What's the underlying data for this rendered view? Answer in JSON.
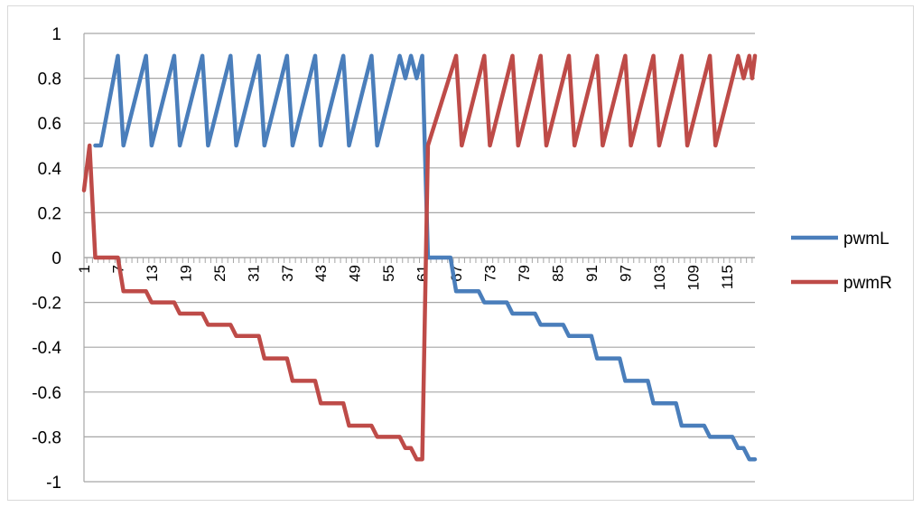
{
  "chart_data": {
    "type": "line",
    "title": "",
    "xlabel": "",
    "ylabel": "",
    "ylim": [
      -1,
      1
    ],
    "yticks": [
      -1,
      -0.8,
      -0.6,
      -0.4,
      -0.2,
      0,
      0.2,
      0.4,
      0.6,
      0.8,
      1
    ],
    "ytick_labels": [
      "-1",
      "-0.8",
      "-0.6",
      "-0.4",
      "-0.2",
      "0",
      "0.2",
      "0.4",
      "0.6",
      "0.8",
      "1"
    ],
    "x_range": [
      1,
      120
    ],
    "xtick_labels": [
      "1",
      "7",
      "13",
      "19",
      "25",
      "31",
      "37",
      "43",
      "49",
      "55",
      "61",
      "67",
      "73",
      "79",
      "85",
      "91",
      "97",
      "103",
      "109",
      "115"
    ],
    "grid": "horizontal",
    "legend_position": "right",
    "series": [
      {
        "name": "pwmL",
        "color": "#4a7ebb",
        "points": [
          [
            3,
            0.5
          ],
          [
            4,
            0.5
          ],
          [
            7,
            0.9
          ],
          [
            8,
            0.5
          ],
          [
            12,
            0.9
          ],
          [
            13,
            0.5
          ],
          [
            17,
            0.9
          ],
          [
            18,
            0.5
          ],
          [
            22,
            0.9
          ],
          [
            23,
            0.5
          ],
          [
            27,
            0.9
          ],
          [
            28,
            0.5
          ],
          [
            32,
            0.9
          ],
          [
            33,
            0.5
          ],
          [
            37,
            0.9
          ],
          [
            38,
            0.5
          ],
          [
            42,
            0.9
          ],
          [
            43,
            0.5
          ],
          [
            47,
            0.9
          ],
          [
            48,
            0.5
          ],
          [
            52,
            0.9
          ],
          [
            53,
            0.5
          ],
          [
            57,
            0.9
          ],
          [
            58,
            0.8
          ],
          [
            59,
            0.9
          ],
          [
            60,
            0.8
          ],
          [
            61,
            0.9
          ],
          [
            62,
            0
          ],
          [
            63,
            0
          ],
          [
            66,
            0
          ],
          [
            67,
            -0.15
          ],
          [
            71,
            -0.15
          ],
          [
            72,
            -0.2
          ],
          [
            76,
            -0.2
          ],
          [
            77,
            -0.25
          ],
          [
            81,
            -0.25
          ],
          [
            82,
            -0.3
          ],
          [
            86,
            -0.3
          ],
          [
            87,
            -0.35
          ],
          [
            91,
            -0.35
          ],
          [
            92,
            -0.45
          ],
          [
            96,
            -0.45
          ],
          [
            97,
            -0.55
          ],
          [
            101,
            -0.55
          ],
          [
            102,
            -0.65
          ],
          [
            106,
            -0.65
          ],
          [
            107,
            -0.75
          ],
          [
            111,
            -0.75
          ],
          [
            112,
            -0.8
          ],
          [
            116,
            -0.8
          ],
          [
            117,
            -0.85
          ],
          [
            118,
            -0.85
          ],
          [
            119,
            -0.9
          ],
          [
            120,
            -0.9
          ]
        ]
      },
      {
        "name": "pwmR",
        "color": "#be4b48",
        "points": [
          [
            1,
            0.3
          ],
          [
            2,
            0.5
          ],
          [
            3,
            0
          ],
          [
            7,
            0
          ],
          [
            8,
            -0.15
          ],
          [
            12,
            -0.15
          ],
          [
            13,
            -0.2
          ],
          [
            17,
            -0.2
          ],
          [
            18,
            -0.25
          ],
          [
            22,
            -0.25
          ],
          [
            23,
            -0.3
          ],
          [
            27,
            -0.3
          ],
          [
            28,
            -0.35
          ],
          [
            32,
            -0.35
          ],
          [
            33,
            -0.45
          ],
          [
            37,
            -0.45
          ],
          [
            38,
            -0.55
          ],
          [
            42,
            -0.55
          ],
          [
            43,
            -0.65
          ],
          [
            47,
            -0.65
          ],
          [
            48,
            -0.75
          ],
          [
            52,
            -0.75
          ],
          [
            53,
            -0.8
          ],
          [
            57,
            -0.8
          ],
          [
            58,
            -0.85
          ],
          [
            59,
            -0.85
          ],
          [
            60,
            -0.9
          ],
          [
            61,
            -0.9
          ],
          [
            62,
            0.5
          ],
          [
            67,
            0.9
          ],
          [
            68,
            0.5
          ],
          [
            72,
            0.9
          ],
          [
            73,
            0.5
          ],
          [
            77,
            0.9
          ],
          [
            78,
            0.5
          ],
          [
            82,
            0.9
          ],
          [
            83,
            0.5
          ],
          [
            87,
            0.9
          ],
          [
            88,
            0.5
          ],
          [
            92,
            0.9
          ],
          [
            93,
            0.5
          ],
          [
            97,
            0.9
          ],
          [
            98,
            0.5
          ],
          [
            102,
            0.9
          ],
          [
            103,
            0.5
          ],
          [
            107,
            0.9
          ],
          [
            108,
            0.5
          ],
          [
            112,
            0.9
          ],
          [
            113,
            0.5
          ],
          [
            117,
            0.9
          ],
          [
            118,
            0.8
          ],
          [
            119,
            0.9
          ],
          [
            119.5,
            0.8
          ],
          [
            120,
            0.9
          ]
        ]
      }
    ]
  }
}
